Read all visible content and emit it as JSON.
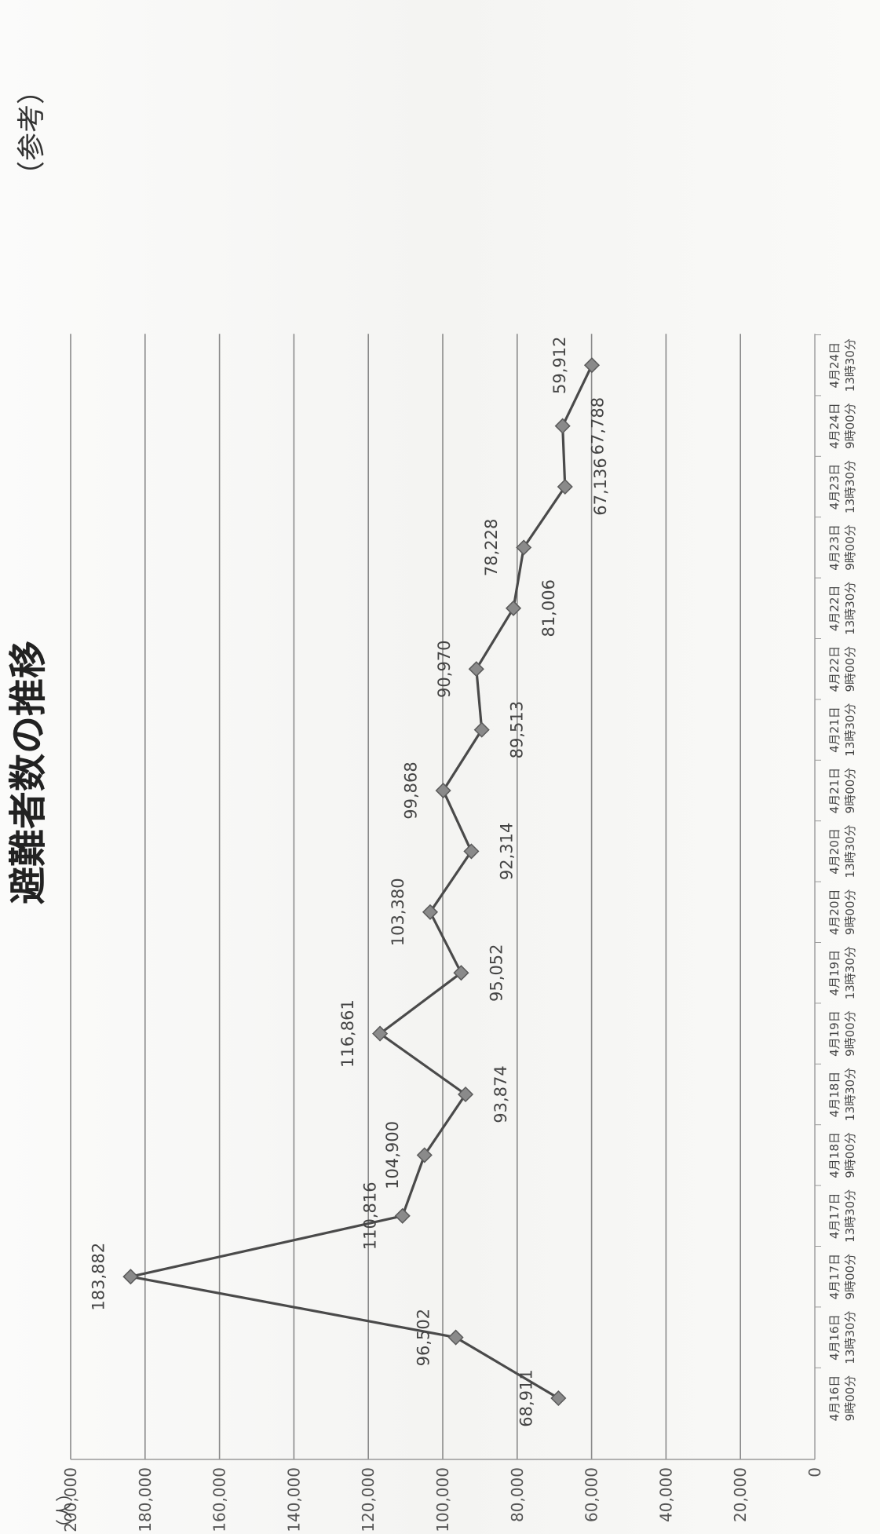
{
  "title": "避難者数の推移",
  "note": "（参考）",
  "colors": {
    "line": "#4a4a4a",
    "marker_fill": "#8a8a8a",
    "marker_stroke": "#5a5a5a",
    "grid": "#8a8a8a",
    "axis": "#9a9a9a"
  },
  "chart_data": {
    "type": "line",
    "title": "避難者数の推移",
    "ylabel": "（人）",
    "xlabel": "",
    "ylim": [
      0,
      200000
    ],
    "ytick_step": 20000,
    "ytick_labels": [
      "0",
      "20,000",
      "40,000",
      "60,000",
      "80,000",
      "100,000",
      "120,000",
      "140,000",
      "160,000",
      "180,000",
      "200,000"
    ],
    "grid": true,
    "legend": "none",
    "categories": [
      [
        "4月16日",
        "9時00分"
      ],
      [
        "4月16日",
        "13時30分"
      ],
      [
        "4月17日",
        "9時00分"
      ],
      [
        "4月17日",
        "13時30分"
      ],
      [
        "4月18日",
        "9時00分"
      ],
      [
        "4月18日",
        "13時30分"
      ],
      [
        "4月19日",
        "9時00分"
      ],
      [
        "4月19日",
        "13時30分"
      ],
      [
        "4月20日",
        "9時00分"
      ],
      [
        "4月20日",
        "13時30分"
      ],
      [
        "4月21日",
        "9時00分"
      ],
      [
        "4月21日",
        "13時30分"
      ],
      [
        "4月22日",
        "9時00分"
      ],
      [
        "4月22日",
        "13時30分"
      ],
      [
        "4月23日",
        "9時00分"
      ],
      [
        "4月23日",
        "13時30分"
      ],
      [
        "4月24日",
        "9時00分"
      ],
      [
        "4月24日",
        "13時30分"
      ]
    ],
    "values": [
      68911,
      96502,
      183882,
      110816,
      104900,
      93874,
      116861,
      95052,
      103380,
      92314,
      99868,
      89513,
      90970,
      81006,
      78228,
      67136,
      67788,
      59912
    ],
    "data_labels": [
      "68,911",
      "96,502",
      "183,882",
      "110,816",
      "104,900",
      "93,874",
      "116,861",
      "95,052",
      "103,380",
      "92,314",
      "99,868",
      "89,513",
      "90,970",
      "81,006",
      "78,228",
      "67,136",
      "67,788",
      "59,912"
    ]
  }
}
